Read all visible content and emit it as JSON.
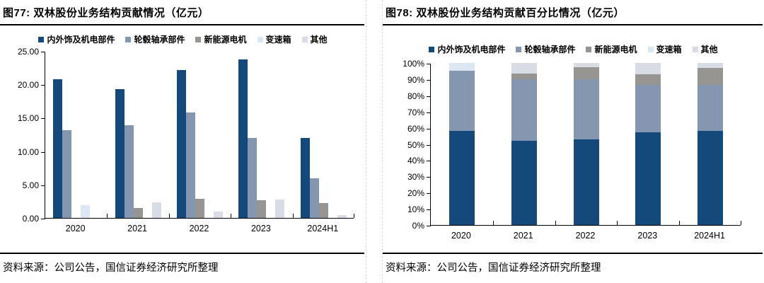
{
  "panels": [
    {
      "title": "图77: 双林股份业务结构贡献情况（亿元）",
      "source": "资料来源：公司公告，国信证券经济研究所整理"
    },
    {
      "title": "图78: 双林股份业务结构贡献百分比情况（亿元）",
      "source": "资料来源：公司公告，国信证券经济研究所整理"
    }
  ],
  "colors": {
    "interior_mech": "#14497b",
    "hub_bearing": "#8496b0",
    "nev_motor": "#979592",
    "transmission": "#dce7f3",
    "other": "#d7dce5",
    "axis": "#000000",
    "separator": "#d9d9d9"
  },
  "chart_data": [
    {
      "type": "bar",
      "title": "图77: 双林股份业务结构贡献情况（亿元）",
      "unit": "亿元",
      "categories": [
        "2020",
        "2021",
        "2022",
        "2023",
        "2024H1"
      ],
      "series": [
        {
          "name": "内外饰及机电部件",
          "color": "#14497b",
          "values": [
            20.8,
            19.3,
            22.1,
            23.7,
            12.0
          ]
        },
        {
          "name": "轮毂轴承部件",
          "color": "#8496b0",
          "values": [
            13.1,
            13.9,
            15.8,
            12.0,
            5.9
          ]
        },
        {
          "name": "新能源电机",
          "color": "#979592",
          "values": [
            0,
            1.5,
            2.9,
            2.6,
            2.2
          ]
        },
        {
          "name": "变速箱",
          "color": "#dce7f3",
          "values": [
            1.9,
            0,
            0,
            0,
            0
          ]
        },
        {
          "name": "其他",
          "color": "#d7dce5",
          "values": [
            0,
            2.3,
            1.0,
            2.8,
            0.45
          ]
        }
      ],
      "ylim": [
        0,
        25
      ],
      "yticks": [
        {
          "label": "25.00",
          "value": 25
        },
        {
          "label": "20.00",
          "value": 20
        },
        {
          "label": "15.00",
          "value": 15
        },
        {
          "label": "10.00",
          "value": 10
        },
        {
          "label": "5.00",
          "value": 5
        },
        {
          "label": "0.00",
          "value": 0
        }
      ],
      "legend_position": "top",
      "grid": false
    },
    {
      "type": "stacked-bar-100",
      "title": "图78: 双林股份业务结构贡献百分比情况（亿元）",
      "unit": "%",
      "categories": [
        "2020",
        "2021",
        "2022",
        "2023",
        "2024H1"
      ],
      "series": [
        {
          "name": "内外饰及机电部件",
          "color": "#14497b",
          "values": [
            58,
            52,
            53,
            57,
            58
          ]
        },
        {
          "name": "轮毂轴承部件",
          "color": "#8496b0",
          "values": [
            37,
            38,
            37,
            29.5,
            28.5
          ]
        },
        {
          "name": "新能源电机",
          "color": "#979592",
          "values": [
            0,
            3.5,
            7.5,
            6.5,
            10.5
          ]
        },
        {
          "name": "变速箱",
          "color": "#dce7f3",
          "values": [
            5,
            0,
            0,
            0,
            0
          ]
        },
        {
          "name": "其他",
          "color": "#d7dce5",
          "values": [
            0,
            6.5,
            2.5,
            7,
            3
          ]
        }
      ],
      "ylim": [
        0,
        100
      ],
      "yticks": [
        {
          "label": "100%",
          "value": 100
        },
        {
          "label": "90%",
          "value": 90
        },
        {
          "label": "80%",
          "value": 80
        },
        {
          "label": "70%",
          "value": 70
        },
        {
          "label": "60%",
          "value": 60
        },
        {
          "label": "50%",
          "value": 50
        },
        {
          "label": "40%",
          "value": 40
        },
        {
          "label": "30%",
          "value": 30
        },
        {
          "label": "20%",
          "value": 20
        },
        {
          "label": "10%",
          "value": 10
        },
        {
          "label": "0%",
          "value": 0
        }
      ],
      "legend_position": "top",
      "grid": false
    }
  ]
}
